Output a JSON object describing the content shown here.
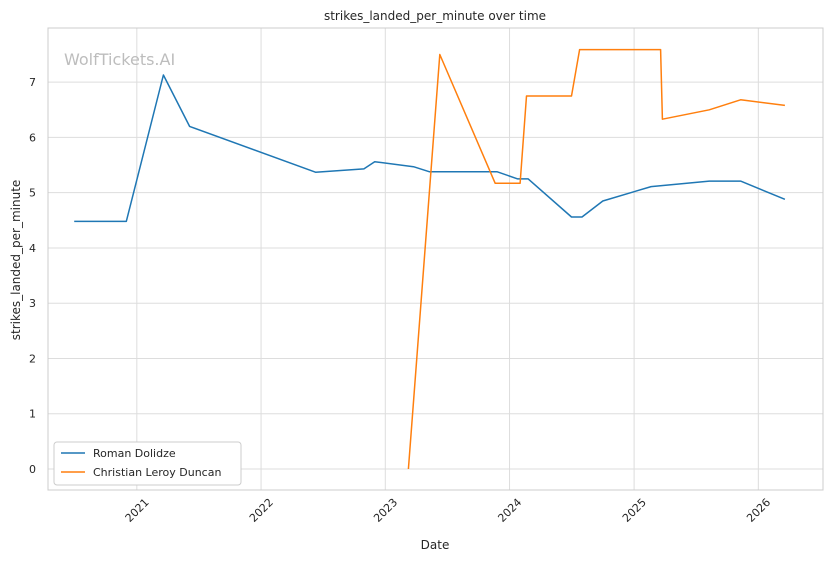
{
  "chart_data": {
    "type": "line",
    "title": "strikes_landed_per_minute over time",
    "xlabel": "Date",
    "ylabel": "strikes_landed_per_minute",
    "watermark": "WolfTickets.AI",
    "x_ticks": [
      "2021",
      "2022",
      "2023",
      "2024",
      "2025",
      "2026"
    ],
    "y_ticks": [
      0,
      1,
      2,
      3,
      4,
      5,
      6,
      7
    ],
    "xlim": [
      "2020-04-15",
      "2026-07-10"
    ],
    "ylim": [
      -0.38,
      7.98
    ],
    "grid": true,
    "legend_position": "lower-left",
    "series": [
      {
        "name": "Roman Dolidze",
        "color": "#1f77b4",
        "points": [
          [
            "2020-07-01",
            4.48
          ],
          [
            "2020-12-01",
            4.48
          ],
          [
            "2021-03-20",
            7.13
          ],
          [
            "2021-06-05",
            6.2
          ],
          [
            "2022-06-10",
            5.37
          ],
          [
            "2022-10-30",
            5.43
          ],
          [
            "2022-12-01",
            5.56
          ],
          [
            "2023-03-25",
            5.47
          ],
          [
            "2023-05-10",
            5.38
          ],
          [
            "2023-11-25",
            5.38
          ],
          [
            "2024-01-25",
            5.25
          ],
          [
            "2024-02-25",
            5.25
          ],
          [
            "2024-07-01",
            4.56
          ],
          [
            "2024-08-01",
            4.56
          ],
          [
            "2024-10-01",
            4.85
          ],
          [
            "2025-02-20",
            5.11
          ],
          [
            "2025-08-10",
            5.21
          ],
          [
            "2025-11-10",
            5.21
          ],
          [
            "2026-03-20",
            4.88
          ]
        ]
      },
      {
        "name": "Christian Leroy Duncan",
        "color": "#ff7f0e",
        "points": [
          [
            "2023-03-10",
            0.0
          ],
          [
            "2023-06-10",
            7.5
          ],
          [
            "2023-11-20",
            5.17
          ],
          [
            "2024-02-01",
            5.17
          ],
          [
            "2024-02-20",
            6.75
          ],
          [
            "2024-07-01",
            6.75
          ],
          [
            "2024-07-25",
            7.59
          ],
          [
            "2025-03-20",
            7.59
          ],
          [
            "2025-03-25",
            6.33
          ],
          [
            "2025-08-10",
            6.5
          ],
          [
            "2025-11-10",
            6.68
          ],
          [
            "2026-03-20",
            6.58
          ]
        ]
      }
    ]
  }
}
